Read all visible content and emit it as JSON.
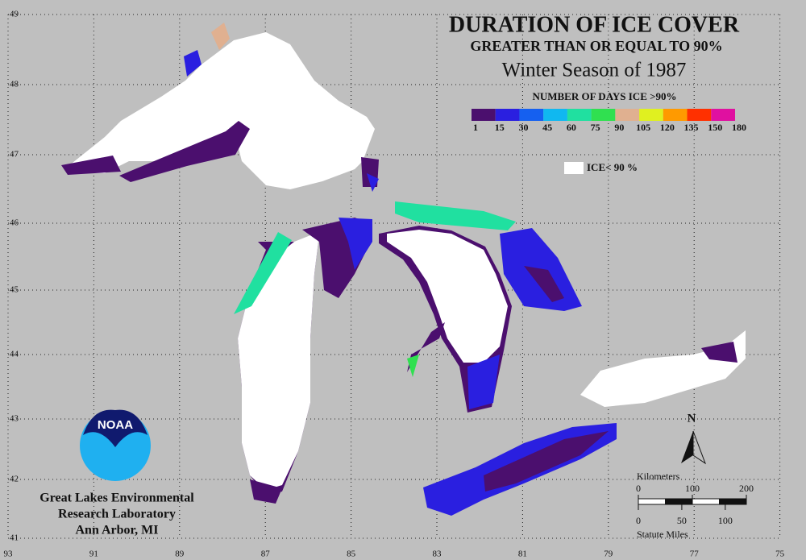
{
  "header": {
    "title": "DURATION OF ICE COVER",
    "subtitle": "GREATER THAN OR EQUAL TO 90%",
    "season": "Winter Season of 1987"
  },
  "legend": {
    "title": "NUMBER OF DAYS ICE >90%",
    "colors": [
      "#4b0f6e",
      "#2a1fe0",
      "#1560f0",
      "#10b8f0",
      "#20e0a0",
      "#30e050",
      "#e0b090",
      "#e0f020",
      "#ff9a00",
      "#ff3000",
      "#e010a0"
    ],
    "ticks": [
      1,
      15,
      30,
      45,
      60,
      75,
      90,
      105,
      120,
      135,
      150,
      180
    ],
    "ice_below_label": "ICE< 90 %"
  },
  "grid": {
    "latitudes": [
      49,
      48,
      47,
      46,
      45,
      44,
      43,
      42,
      41
    ],
    "longitudes": [
      93,
      91,
      89,
      87,
      85,
      83,
      81,
      79,
      77,
      75
    ]
  },
  "north_label": "N",
  "scale": {
    "km_label": "Kilometers",
    "km_ticks": [
      0,
      100,
      200
    ],
    "mi_ticks": [
      0,
      50,
      100
    ],
    "mi_label": "Statute Miles"
  },
  "logo": "NOAA",
  "credit": [
    "Great Lakes Environmental",
    "Research Laboratory",
    "Ann Arbor, MI"
  ]
}
